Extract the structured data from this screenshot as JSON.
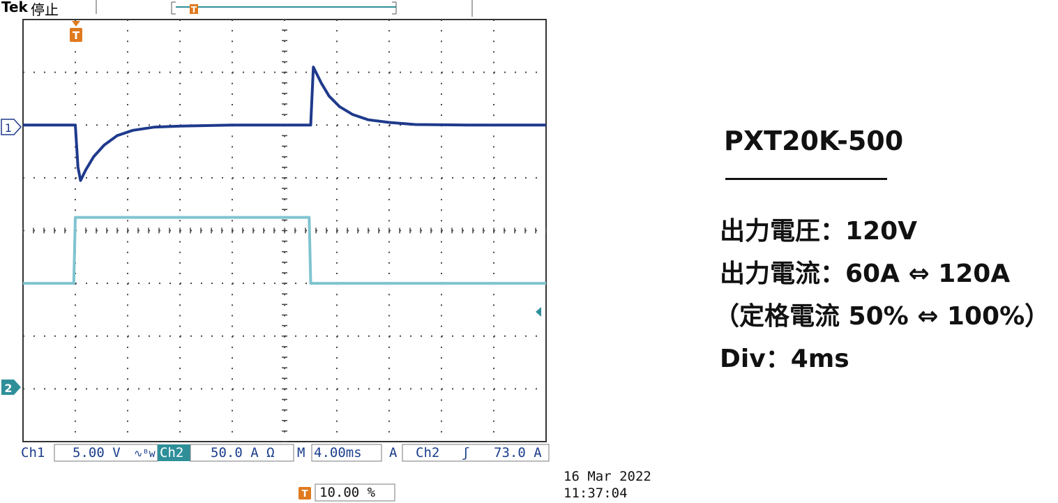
{
  "header": {
    "brand": "Tek",
    "state": "停止"
  },
  "markers": {
    "trigger": "T",
    "ch1": "1",
    "ch2": "2"
  },
  "status_bar": {
    "ch1_label": "Ch1",
    "ch1_scale": "5.00 V",
    "ch1_flags": "∿ᴮw",
    "ch2_label": "Ch2",
    "ch2_scale": "50.0 A Ω",
    "time_label": "M",
    "time_scale": "4.00ms",
    "trig_label": "A",
    "trig_source": "Ch2",
    "trig_slope": "ʃ",
    "trig_level": "73.0 A",
    "trig_pos": "10.00 %",
    "date": "16 Mar  2022",
    "time": "11:37:04"
  },
  "panel": {
    "title": "PXT20K-500",
    "line1": "出力電圧：120V",
    "line2": "出力電流：60A ⇔ 120A",
    "line3": "（定格電流 50% ⇔ 100%）",
    "line4": "Div：4ms"
  },
  "colors": {
    "ch1": "#1f3a8c",
    "ch2": "#7fc4d0",
    "grid": "#333333",
    "trigger": "#e07a1f",
    "accent": "#2e8f99"
  },
  "chart_data": {
    "type": "line",
    "x_div": 10,
    "y_div": 8,
    "series": [
      {
        "x": [
          0.0,
          0.95,
          1.0,
          1.05,
          1.1,
          1.2,
          1.35,
          1.55,
          1.8,
          2.1,
          2.5,
          3.0,
          4.0,
          5.0,
          5.45,
          5.5,
          5.55,
          5.6,
          5.7,
          5.85,
          6.05,
          6.3,
          6.6,
          7.0,
          7.5,
          8.5,
          10.0
        ],
        "y": [
          2.0,
          2.0,
          2.0,
          1.2,
          0.95,
          1.15,
          1.4,
          1.62,
          1.8,
          1.9,
          1.96,
          1.98,
          2.0,
          2.0,
          2.0,
          2.0,
          3.1,
          3.0,
          2.8,
          2.55,
          2.35,
          2.2,
          2.1,
          2.05,
          2.01,
          2.0,
          2.0
        ]
      },
      {
        "x": [
          0.0,
          0.97,
          1.0,
          5.47,
          5.5,
          10.0
        ],
        "y": [
          -1.0,
          -1.0,
          0.25,
          0.25,
          -1.0,
          -1.0
        ]
      }
    ]
  }
}
